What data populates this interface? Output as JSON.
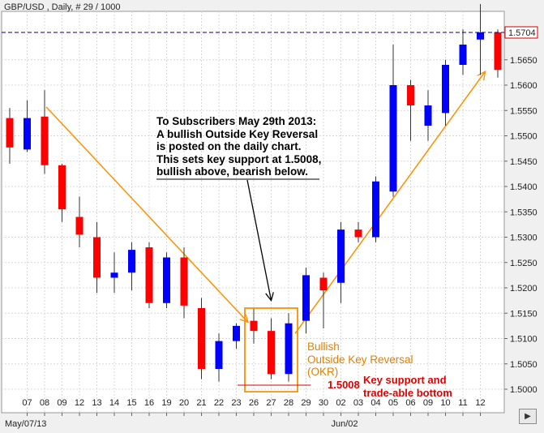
{
  "header": {
    "title": "GBP/USD , Daily, # 29 / 1000"
  },
  "chart_data": {
    "type": "candlestick",
    "symbol": "GBP/USD",
    "timeframe": "Daily",
    "ylim": [
      1.498,
      1.572
    ],
    "y_ticks": [
      "1.5650",
      "1.5600",
      "1.5550",
      "1.5500",
      "1.5450",
      "1.5400",
      "1.5350",
      "1.5300",
      "1.5250",
      "1.5200",
      "1.5150",
      "1.5100",
      "1.5050",
      "1.5000"
    ],
    "current_price_label": "1.5704",
    "current_price": 1.5704,
    "x_tick_labels": [
      "07",
      "08",
      "09",
      "12",
      "13",
      "14",
      "15",
      "16",
      "19",
      "20",
      "21",
      "22",
      "23",
      "26",
      "27",
      "28",
      "29",
      "30",
      "02",
      "03",
      "04",
      "05",
      "06",
      "09",
      "10",
      "11",
      "12"
    ],
    "x_date_labels": [
      "May/07/13",
      "Jun/02"
    ],
    "candles": [
      {
        "o": 1.5535,
        "h": 1.5555,
        "l": 1.5445,
        "c": 1.5477
      },
      {
        "o": 1.5473,
        "h": 1.557,
        "l": 1.5468,
        "c": 1.5535
      },
      {
        "o": 1.5538,
        "h": 1.559,
        "l": 1.5425,
        "c": 1.5442
      },
      {
        "o": 1.5442,
        "h": 1.5445,
        "l": 1.533,
        "c": 1.5355
      },
      {
        "o": 1.534,
        "h": 1.538,
        "l": 1.528,
        "c": 1.5305
      },
      {
        "o": 1.53,
        "h": 1.533,
        "l": 1.519,
        "c": 1.522
      },
      {
        "o": 1.522,
        "h": 1.527,
        "l": 1.519,
        "c": 1.523
      },
      {
        "o": 1.523,
        "h": 1.529,
        "l": 1.5195,
        "c": 1.5275
      },
      {
        "o": 1.528,
        "h": 1.529,
        "l": 1.516,
        "c": 1.517
      },
      {
        "o": 1.517,
        "h": 1.527,
        "l": 1.516,
        "c": 1.526
      },
      {
        "o": 1.526,
        "h": 1.528,
        "l": 1.514,
        "c": 1.5165
      },
      {
        "o": 1.516,
        "h": 1.518,
        "l": 1.502,
        "c": 1.504
      },
      {
        "o": 1.504,
        "h": 1.511,
        "l": 1.5015,
        "c": 1.5095
      },
      {
        "o": 1.5095,
        "h": 1.513,
        "l": 1.508,
        "c": 1.5125
      },
      {
        "o": 1.5135,
        "h": 1.516,
        "l": 1.509,
        "c": 1.5115
      },
      {
        "o": 1.5115,
        "h": 1.514,
        "l": 1.502,
        "c": 1.503
      },
      {
        "o": 1.503,
        "h": 1.515,
        "l": 1.5015,
        "c": 1.513
      },
      {
        "o": 1.5135,
        "h": 1.524,
        "l": 1.511,
        "c": 1.5225
      },
      {
        "o": 1.522,
        "h": 1.523,
        "l": 1.512,
        "c": 1.5195
      },
      {
        "o": 1.521,
        "h": 1.533,
        "l": 1.517,
        "c": 1.5315
      },
      {
        "o": 1.5315,
        "h": 1.533,
        "l": 1.529,
        "c": 1.53
      },
      {
        "o": 1.53,
        "h": 1.542,
        "l": 1.529,
        "c": 1.541
      },
      {
        "o": 1.539,
        "h": 1.568,
        "l": 1.538,
        "c": 1.56
      },
      {
        "o": 1.56,
        "h": 1.561,
        "l": 1.549,
        "c": 1.556
      },
      {
        "o": 1.552,
        "h": 1.559,
        "l": 1.549,
        "c": 1.556
      },
      {
        "o": 1.5545,
        "h": 1.565,
        "l": 1.552,
        "c": 1.564
      },
      {
        "o": 1.564,
        "h": 1.571,
        "l": 1.562,
        "c": 1.568
      },
      {
        "o": 1.569,
        "h": 1.576,
        "l": 1.562,
        "c": 1.5704
      },
      {
        "o": 1.5704,
        "h": 1.571,
        "l": 1.5615,
        "c": 1.563
      }
    ],
    "key_support": 1.5008,
    "grid": true,
    "colors": {
      "up": "#0000ff",
      "down": "#ff0000",
      "trend": "#ff9000",
      "annotation_text": "#e08000",
      "support_text": "#e00000",
      "price_line": "#000080"
    }
  },
  "annotations": {
    "subscriber_note": [
      "To Subscribers May 29th 2013:",
      "A bullish Outside Key Reversal",
      "is posted on the daily chart.",
      "This sets key support at 1.5008,",
      "bullish above, bearish below."
    ],
    "okr_label": [
      "Bullish",
      "Outside Key Reversal",
      "(OKR)"
    ],
    "support_value": "1.5008",
    "support_label": [
      "Key support and",
      "trade-able bottom"
    ]
  }
}
